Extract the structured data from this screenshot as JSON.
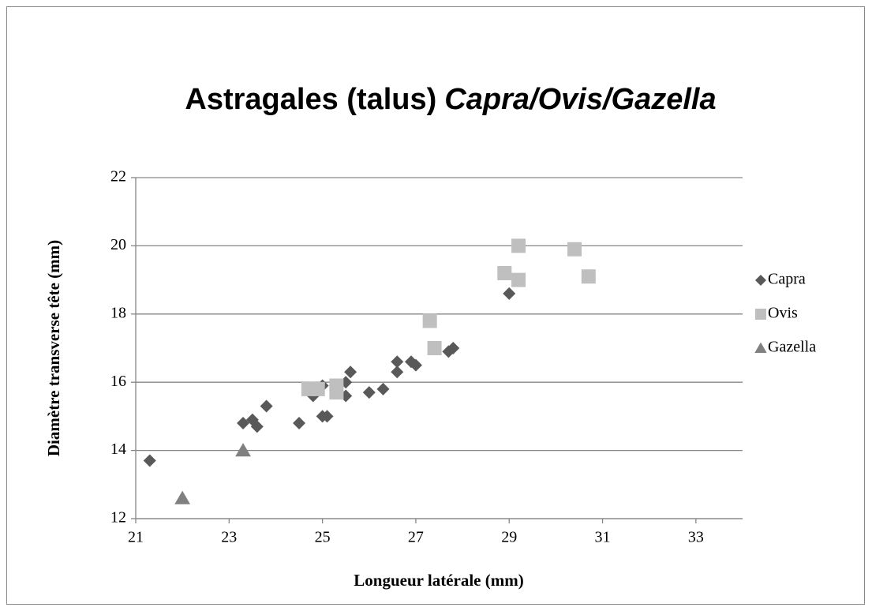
{
  "chart_data": {
    "type": "scatter",
    "title": [
      "Astragales (talus)",
      "Capra/Ovis/Gazella"
    ],
    "x_label": "Longueur latérale (mm)",
    "y_label": "Diamètre transverse tête (mm)",
    "xlim": [
      21,
      34
    ],
    "xticks": [
      21,
      23,
      25,
      27,
      29,
      31,
      33
    ],
    "ylim": [
      12,
      22
    ],
    "yticks": [
      12,
      14,
      16,
      18,
      20,
      22
    ],
    "grid": true,
    "legend": "right",
    "series": [
      {
        "name": "Capra",
        "color": "#595959",
        "marker": "diamond",
        "x": [
          21.3,
          23.3,
          23.5,
          23.6,
          23.8,
          24.5,
          24.8,
          24.9,
          25.0,
          25.0,
          25.1,
          25.5,
          25.5,
          25.6,
          26.0,
          26.3,
          26.6,
          26.6,
          26.9,
          27.0,
          27.7,
          27.8,
          29.0
        ],
        "values": [
          13.7,
          14.8,
          14.9,
          14.7,
          15.3,
          14.8,
          15.6,
          15.8,
          15.9,
          15.0,
          15.0,
          15.6,
          16.0,
          16.3,
          15.7,
          15.8,
          16.6,
          16.3,
          16.6,
          16.5,
          16.9,
          17.0,
          18.6
        ]
      },
      {
        "name": "Ovis",
        "color": "#bfbfbf",
        "marker": "square",
        "x": [
          24.7,
          24.9,
          25.3,
          25.3,
          27.3,
          27.4,
          28.9,
          29.2,
          29.2,
          30.4,
          30.7
        ],
        "values": [
          15.8,
          15.8,
          15.9,
          15.7,
          17.8,
          17.0,
          19.2,
          19.0,
          20.0,
          19.9,
          19.1
        ]
      },
      {
        "name": "Gazella",
        "color": "#808080",
        "marker": "triangle",
        "x": [
          23.3,
          22.0
        ],
        "values": [
          14.0,
          12.6
        ]
      }
    ]
  }
}
